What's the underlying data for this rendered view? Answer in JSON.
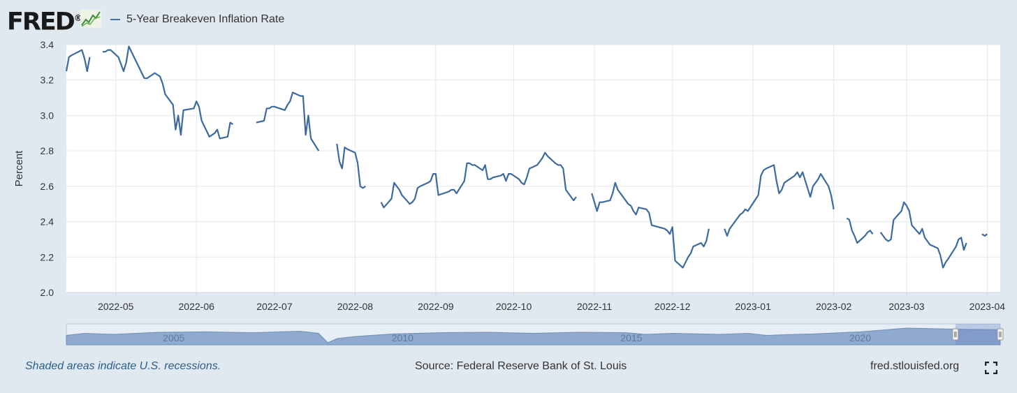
{
  "header": {
    "logo_text": "FRED",
    "logo_mark": "®",
    "logo_icon": "line-chart-icon"
  },
  "footer": {
    "recession_note": "Shaded areas indicate U.S. recessions.",
    "source": "Source: Federal Reserve Bank of St. Louis",
    "site": "fred.stlouisfed.org",
    "fullscreen_icon": "fullscreen-expand-icon"
  },
  "colors": {
    "series": "#3d6a9e",
    "page_background": "#e1e9f0",
    "plot_background": "#ffffff",
    "navigator_fill": "#8faace"
  },
  "chart_data": {
    "type": "line",
    "title": "",
    "xlabel": "",
    "ylabel": "Percent",
    "ylim": [
      2.0,
      3.4
    ],
    "yticks": [
      "2.0",
      "2.2",
      "2.4",
      "2.6",
      "2.8",
      "3.0",
      "3.2",
      "3.4"
    ],
    "xlim": [
      "2022-04-12",
      "2023-04-06"
    ],
    "xticks": [
      "2022-05",
      "2022-06",
      "2022-07",
      "2022-08",
      "2022-09",
      "2022-10",
      "2022-11",
      "2022-12",
      "2023-01",
      "2023-02",
      "2023-03",
      "2023-04"
    ],
    "grid": true,
    "legend": "top-left",
    "series": [
      {
        "name": "5-Year Breakeven Inflation Rate",
        "color": "#3d6a9e",
        "points": [
          [
            "2022-04-12",
            3.25
          ],
          [
            "2022-04-13",
            3.33
          ],
          [
            "2022-04-14",
            3.34
          ],
          [
            "2022-04-18",
            3.37
          ],
          [
            "2022-04-19",
            3.32
          ],
          [
            "2022-04-20",
            3.25
          ],
          [
            "2022-04-21",
            3.33
          ],
          null,
          [
            "2022-04-26",
            3.36
          ],
          [
            "2022-04-27",
            3.36
          ],
          [
            "2022-04-28",
            3.37
          ],
          [
            "2022-04-29",
            3.37
          ],
          [
            "2022-05-02",
            3.33
          ],
          [
            "2022-05-03",
            3.29
          ],
          [
            "2022-05-04",
            3.25
          ],
          [
            "2022-05-05",
            3.3
          ],
          [
            "2022-05-06",
            3.39
          ],
          [
            "2022-05-09",
            3.3
          ],
          [
            "2022-05-10",
            3.27
          ],
          [
            "2022-05-11",
            3.24
          ],
          [
            "2022-05-12",
            3.21
          ],
          [
            "2022-05-13",
            3.21
          ],
          [
            "2022-05-16",
            3.24
          ],
          [
            "2022-05-17",
            3.23
          ],
          [
            "2022-05-18",
            3.22
          ],
          [
            "2022-05-19",
            3.18
          ],
          [
            "2022-05-20",
            3.12
          ],
          [
            "2022-05-23",
            3.06
          ],
          [
            "2022-05-24",
            2.92
          ],
          [
            "2022-05-25",
            3.0
          ],
          [
            "2022-05-26",
            2.89
          ],
          [
            "2022-05-27",
            3.03
          ],
          [
            "2022-05-31",
            3.04
          ],
          [
            "2022-06-01",
            3.08
          ],
          [
            "2022-06-02",
            3.05
          ],
          [
            "2022-06-03",
            2.97
          ],
          [
            "2022-06-06",
            2.88
          ],
          [
            "2022-06-07",
            2.89
          ],
          [
            "2022-06-08",
            2.9
          ],
          [
            "2022-06-09",
            2.92
          ],
          [
            "2022-06-10",
            2.87
          ],
          [
            "2022-06-13",
            2.88
          ],
          [
            "2022-06-14",
            2.96
          ],
          [
            "2022-06-15",
            2.95
          ],
          null,
          [
            "2022-06-24",
            2.96
          ],
          [
            "2022-06-27",
            2.97
          ],
          [
            "2022-06-28",
            3.04
          ],
          [
            "2022-06-29",
            3.04
          ],
          [
            "2022-06-30",
            3.05
          ],
          [
            "2022-07-01",
            3.05
          ],
          [
            "2022-07-05",
            3.03
          ],
          [
            "2022-07-06",
            3.06
          ],
          [
            "2022-07-07",
            3.08
          ],
          [
            "2022-07-08",
            3.13
          ],
          [
            "2022-07-11",
            3.11
          ],
          [
            "2022-07-12",
            3.11
          ],
          [
            "2022-07-13",
            2.89
          ],
          [
            "2022-07-14",
            3.0
          ],
          [
            "2022-07-15",
            2.87
          ],
          [
            "2022-07-18",
            2.8
          ],
          null,
          [
            "2022-07-25",
            2.84
          ],
          [
            "2022-07-26",
            2.74
          ],
          [
            "2022-07-27",
            2.7
          ],
          [
            "2022-07-28",
            2.82
          ],
          [
            "2022-07-29",
            2.81
          ],
          [
            "2022-08-01",
            2.79
          ],
          [
            "2022-08-02",
            2.73
          ],
          [
            "2022-08-03",
            2.6
          ],
          [
            "2022-08-04",
            2.59
          ],
          [
            "2022-08-05",
            2.6
          ],
          null,
          [
            "2022-08-11",
            2.51
          ],
          [
            "2022-08-12",
            2.48
          ],
          [
            "2022-08-15",
            2.53
          ],
          [
            "2022-08-16",
            2.62
          ],
          [
            "2022-08-17",
            2.6
          ],
          [
            "2022-08-18",
            2.58
          ],
          [
            "2022-08-19",
            2.55
          ],
          [
            "2022-08-22",
            2.5
          ],
          [
            "2022-08-23",
            2.51
          ],
          [
            "2022-08-24",
            2.53
          ],
          [
            "2022-08-25",
            2.59
          ],
          [
            "2022-08-26",
            2.6
          ],
          [
            "2022-08-29",
            2.62
          ],
          [
            "2022-08-30",
            2.63
          ],
          [
            "2022-08-31",
            2.67
          ],
          [
            "2022-09-01",
            2.67
          ],
          [
            "2022-09-02",
            2.55
          ],
          [
            "2022-09-06",
            2.57
          ],
          [
            "2022-09-07",
            2.58
          ],
          [
            "2022-09-08",
            2.58
          ],
          [
            "2022-09-09",
            2.56
          ],
          [
            "2022-09-12",
            2.63
          ],
          [
            "2022-09-13",
            2.73
          ],
          [
            "2022-09-14",
            2.73
          ],
          [
            "2022-09-15",
            2.72
          ],
          [
            "2022-09-16",
            2.72
          ],
          [
            "2022-09-19",
            2.69
          ],
          [
            "2022-09-20",
            2.72
          ],
          [
            "2022-09-21",
            2.64
          ],
          [
            "2022-09-22",
            2.64
          ],
          [
            "2022-09-23",
            2.65
          ],
          [
            "2022-09-26",
            2.66
          ],
          [
            "2022-09-27",
            2.67
          ],
          [
            "2022-09-28",
            2.63
          ],
          [
            "2022-09-29",
            2.67
          ],
          [
            "2022-09-30",
            2.67
          ],
          [
            "2022-10-03",
            2.64
          ],
          [
            "2022-10-04",
            2.62
          ],
          [
            "2022-10-05",
            2.61
          ],
          [
            "2022-10-06",
            2.65
          ],
          [
            "2022-10-07",
            2.7
          ],
          [
            "2022-10-10",
            2.72
          ],
          [
            "2022-10-11",
            2.74
          ],
          [
            "2022-10-12",
            2.76
          ],
          [
            "2022-10-13",
            2.79
          ],
          [
            "2022-10-14",
            2.77
          ],
          [
            "2022-10-17",
            2.73
          ],
          [
            "2022-10-18",
            2.72
          ],
          [
            "2022-10-19",
            2.72
          ],
          [
            "2022-10-20",
            2.7
          ],
          [
            "2022-10-21",
            2.58
          ],
          [
            "2022-10-24",
            2.52
          ],
          [
            "2022-10-25",
            2.54
          ],
          null,
          [
            "2022-10-31",
            2.56
          ],
          [
            "2022-11-01",
            2.51
          ],
          [
            "2022-11-02",
            2.46
          ],
          [
            "2022-11-03",
            2.51
          ],
          [
            "2022-11-04",
            2.51
          ],
          [
            "2022-11-07",
            2.52
          ],
          [
            "2022-11-08",
            2.56
          ],
          [
            "2022-11-09",
            2.62
          ],
          [
            "2022-11-10",
            2.58
          ],
          [
            "2022-11-14",
            2.5
          ],
          [
            "2022-11-15",
            2.49
          ],
          [
            "2022-11-16",
            2.46
          ],
          [
            "2022-11-17",
            2.44
          ],
          [
            "2022-11-18",
            2.48
          ],
          [
            "2022-11-21",
            2.47
          ],
          [
            "2022-11-22",
            2.45
          ],
          [
            "2022-11-23",
            2.38
          ],
          [
            "2022-11-28",
            2.36
          ],
          [
            "2022-11-29",
            2.35
          ],
          [
            "2022-11-30",
            2.33
          ],
          [
            "2022-12-01",
            2.37
          ],
          [
            "2022-12-02",
            2.18
          ],
          [
            "2022-12-05",
            2.14
          ],
          [
            "2022-12-06",
            2.17
          ],
          [
            "2022-12-07",
            2.2
          ],
          [
            "2022-12-08",
            2.22
          ],
          [
            "2022-12-09",
            2.26
          ],
          [
            "2022-12-12",
            2.28
          ],
          [
            "2022-12-13",
            2.26
          ],
          [
            "2022-12-14",
            2.29
          ],
          [
            "2022-12-15",
            2.36
          ],
          null,
          [
            "2022-12-21",
            2.36
          ],
          [
            "2022-12-22",
            2.32
          ],
          [
            "2022-12-23",
            2.36
          ],
          [
            "2022-12-27",
            2.44
          ],
          [
            "2022-12-28",
            2.45
          ],
          [
            "2022-12-29",
            2.47
          ],
          [
            "2022-12-30",
            2.46
          ],
          [
            "2023-01-03",
            2.55
          ],
          [
            "2023-01-04",
            2.66
          ],
          [
            "2023-01-05",
            2.69
          ],
          [
            "2023-01-06",
            2.7
          ],
          [
            "2023-01-09",
            2.72
          ],
          [
            "2023-01-10",
            2.63
          ],
          [
            "2023-01-11",
            2.56
          ],
          [
            "2023-01-12",
            2.58
          ],
          [
            "2023-01-13",
            2.62
          ],
          [
            "2023-01-17",
            2.66
          ],
          [
            "2023-01-18",
            2.68
          ],
          [
            "2023-01-19",
            2.65
          ],
          [
            "2023-01-20",
            2.68
          ],
          [
            "2023-01-23",
            2.54
          ],
          [
            "2023-01-24",
            2.6
          ],
          [
            "2023-01-25",
            2.62
          ],
          [
            "2023-01-26",
            2.64
          ],
          [
            "2023-01-27",
            2.67
          ],
          [
            "2023-01-30",
            2.6
          ],
          [
            "2023-01-31",
            2.55
          ],
          [
            "2023-02-01",
            2.47
          ],
          null,
          [
            "2023-02-06",
            2.42
          ],
          [
            "2023-02-07",
            2.41
          ],
          [
            "2023-02-08",
            2.35
          ],
          [
            "2023-02-09",
            2.32
          ],
          [
            "2023-02-10",
            2.28
          ],
          [
            "2023-02-13",
            2.32
          ],
          [
            "2023-02-14",
            2.34
          ],
          [
            "2023-02-15",
            2.35
          ],
          [
            "2023-02-16",
            2.33
          ],
          null,
          [
            "2023-02-19",
            2.34
          ],
          [
            "2023-02-20",
            2.32
          ],
          [
            "2023-02-21",
            2.3
          ],
          [
            "2023-02-22",
            2.29
          ],
          [
            "2023-02-23",
            2.3
          ],
          [
            "2023-02-24",
            2.41
          ],
          [
            "2023-02-27",
            2.46
          ],
          [
            "2023-02-28",
            2.51
          ],
          [
            "2023-03-01",
            2.49
          ],
          [
            "2023-03-02",
            2.46
          ],
          [
            "2023-03-03",
            2.38
          ],
          [
            "2023-03-06",
            2.33
          ],
          [
            "2023-03-07",
            2.36
          ],
          [
            "2023-03-08",
            2.31
          ],
          [
            "2023-03-09",
            2.29
          ],
          [
            "2023-03-10",
            2.27
          ],
          [
            "2023-03-13",
            2.25
          ],
          [
            "2023-03-14",
            2.21
          ],
          [
            "2023-03-15",
            2.14
          ],
          [
            "2023-03-16",
            2.17
          ],
          [
            "2023-03-17",
            2.19
          ],
          [
            "2023-03-20",
            2.26
          ],
          [
            "2023-03-21",
            2.3
          ],
          [
            "2023-03-22",
            2.31
          ],
          [
            "2023-03-23",
            2.24
          ],
          [
            "2023-03-24",
            2.28
          ],
          null,
          [
            "2023-03-30",
            2.33
          ],
          [
            "2023-03-31",
            2.32
          ],
          [
            "2023-04-01",
            2.33
          ]
        ]
      }
    ],
    "navigator": {
      "year_labels": [
        "2005",
        "2010",
        "2015",
        "2020"
      ]
    }
  }
}
